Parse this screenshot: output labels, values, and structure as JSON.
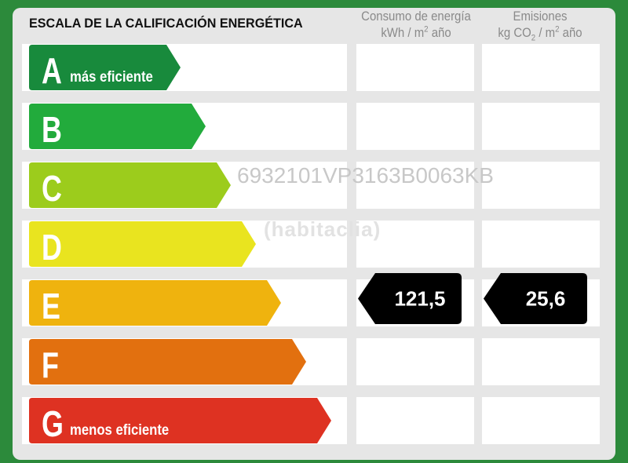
{
  "title": "ESCALA DE LA CALIFICACIÓN ENERGÉTICA",
  "columns": {
    "energy": {
      "line1": "Consumo de energía",
      "line2_pre": "kWh / m",
      "line2_sup": "2",
      "line2_post": " año"
    },
    "emissions": {
      "line1": "Emisiones",
      "line2_pre": "kg CO",
      "line2_sub": "2",
      "line2_mid": " / m",
      "line2_sup": "2",
      "line2_post": " año"
    }
  },
  "watermark_ref": "6932101VP3163B0063KB",
  "watermark_logo": "habitaclia",
  "colors": {
    "A": "#188a3c",
    "B": "#22ab3c",
    "C": "#9ccc1c",
    "D": "#e9e41f",
    "E": "#efb30e",
    "F": "#e2700f",
    "G": "#de3222",
    "frame": "#2c8a3b",
    "indicator": "#000000"
  },
  "chart_data": {
    "type": "table",
    "title": "ESCALA DE LA CALIFICACIÓN ENERGÉTICA",
    "classes": [
      {
        "letter": "A",
        "label": "más eficiente"
      },
      {
        "letter": "B",
        "label": ""
      },
      {
        "letter": "C",
        "label": ""
      },
      {
        "letter": "D",
        "label": ""
      },
      {
        "letter": "E",
        "label": ""
      },
      {
        "letter": "F",
        "label": ""
      },
      {
        "letter": "G",
        "label": "menos eficiente"
      }
    ],
    "energy_consumption": {
      "class": "E",
      "value": "121,5",
      "unit": "kWh / m² año"
    },
    "emissions": {
      "class": "E",
      "value": "25,6",
      "unit": "kg CO₂ / m² año"
    }
  }
}
